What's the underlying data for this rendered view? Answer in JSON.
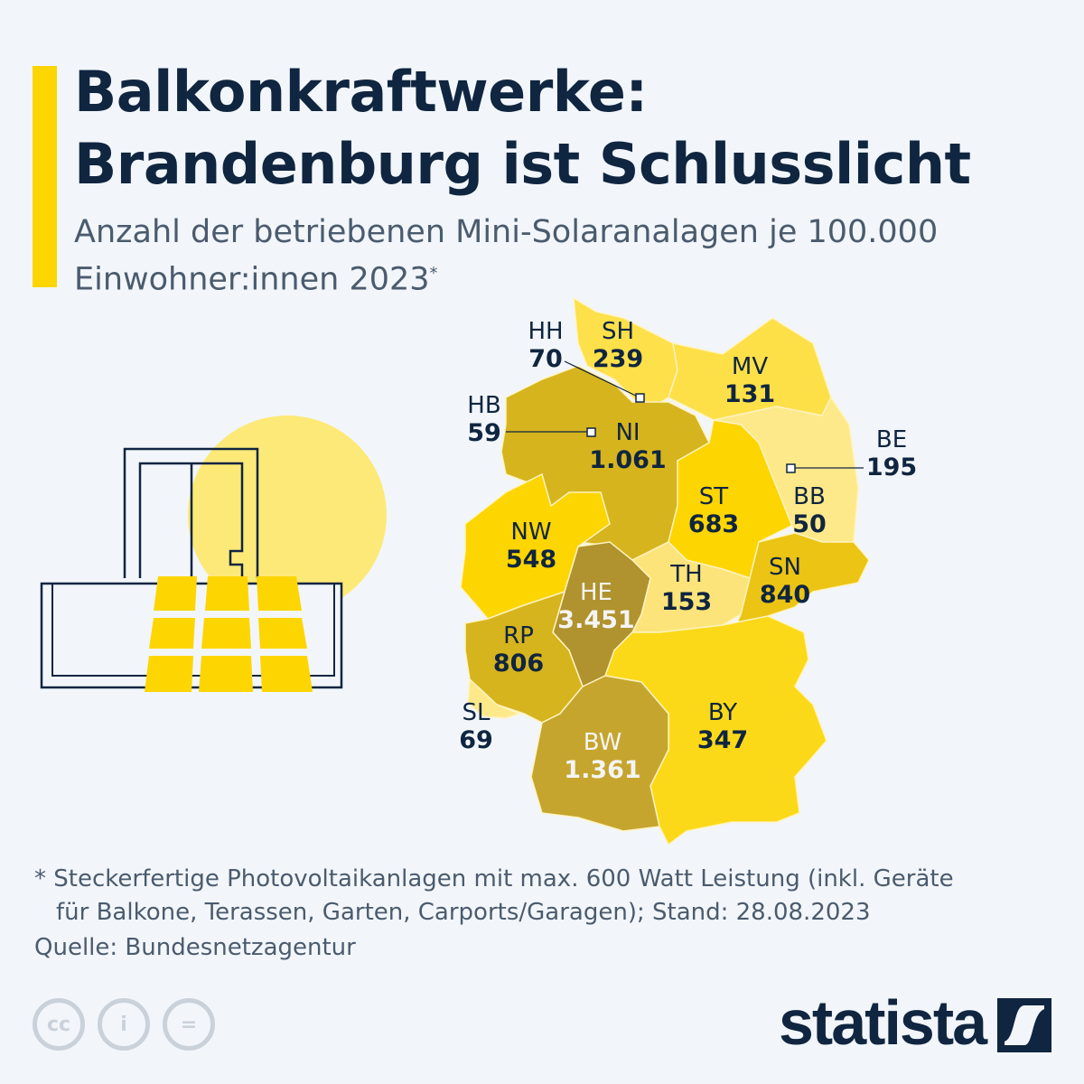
{
  "header": {
    "title_line1": "Balkonkraftwerke:",
    "title_line2": "Brandenburg ist Schlusslicht",
    "subtitle_line1": "Anzahl der betriebenen Mini-Solaranalagen je 100.000",
    "subtitle_line2": "Einwohner:innen 2023",
    "subtitle_mark": "*"
  },
  "chart_data": {
    "type": "choropleth",
    "title": "Balkonkraftwerke: Brandenburg ist Schlusslicht",
    "unit": "Mini-Solaranlagen je 100.000 Einwohner:innen 2023",
    "regions": [
      {
        "code": "SH",
        "value": 239,
        "display": "239",
        "color": "#fde04a"
      },
      {
        "code": "HH",
        "value": 70,
        "display": "70",
        "color": "#fee98a"
      },
      {
        "code": "MV",
        "value": 131,
        "display": "131",
        "color": "#fde048"
      },
      {
        "code": "HB",
        "value": 59,
        "display": "59",
        "color": "#fee98a"
      },
      {
        "code": "NI",
        "value": 1061,
        "display": "1.061",
        "color": "#d6b41e"
      },
      {
        "code": "BE",
        "value": 195,
        "display": "195",
        "color": "#fee98a"
      },
      {
        "code": "ST",
        "value": 683,
        "display": "683",
        "color": "#fdd500"
      },
      {
        "code": "BB",
        "value": 50,
        "display": "50",
        "color": "#fee98a"
      },
      {
        "code": "NW",
        "value": 548,
        "display": "548",
        "color": "#fdd500"
      },
      {
        "code": "SN",
        "value": 840,
        "display": "840",
        "color": "#ebc414"
      },
      {
        "code": "TH",
        "value": 153,
        "display": "153",
        "color": "#fde47a"
      },
      {
        "code": "HE",
        "value": 3451,
        "display": "3.451",
        "color": "#b0922f"
      },
      {
        "code": "RP",
        "value": 806,
        "display": "806",
        "color": "#d6b41e"
      },
      {
        "code": "SL",
        "value": 69,
        "display": "69",
        "color": "#fee98a"
      },
      {
        "code": "BY",
        "value": 347,
        "display": "347",
        "color": "#fcd918"
      },
      {
        "code": "BW",
        "value": 1361,
        "display": "1.361",
        "color": "#c5a52e"
      }
    ]
  },
  "footer": {
    "note_mark": "*",
    "note_line1": "Steckerfertige Photovoltaikanlagen mit max. 600 Watt Leistung (inkl. Geräte",
    "note_line2": "für Balkone, Terassen, Garten, Carports/Garagen); Stand: 28.08.2023",
    "source": "Quelle: Bundesnetzagentur",
    "license_icons": [
      "cc",
      "i",
      "="
    ],
    "brand": "statista"
  }
}
